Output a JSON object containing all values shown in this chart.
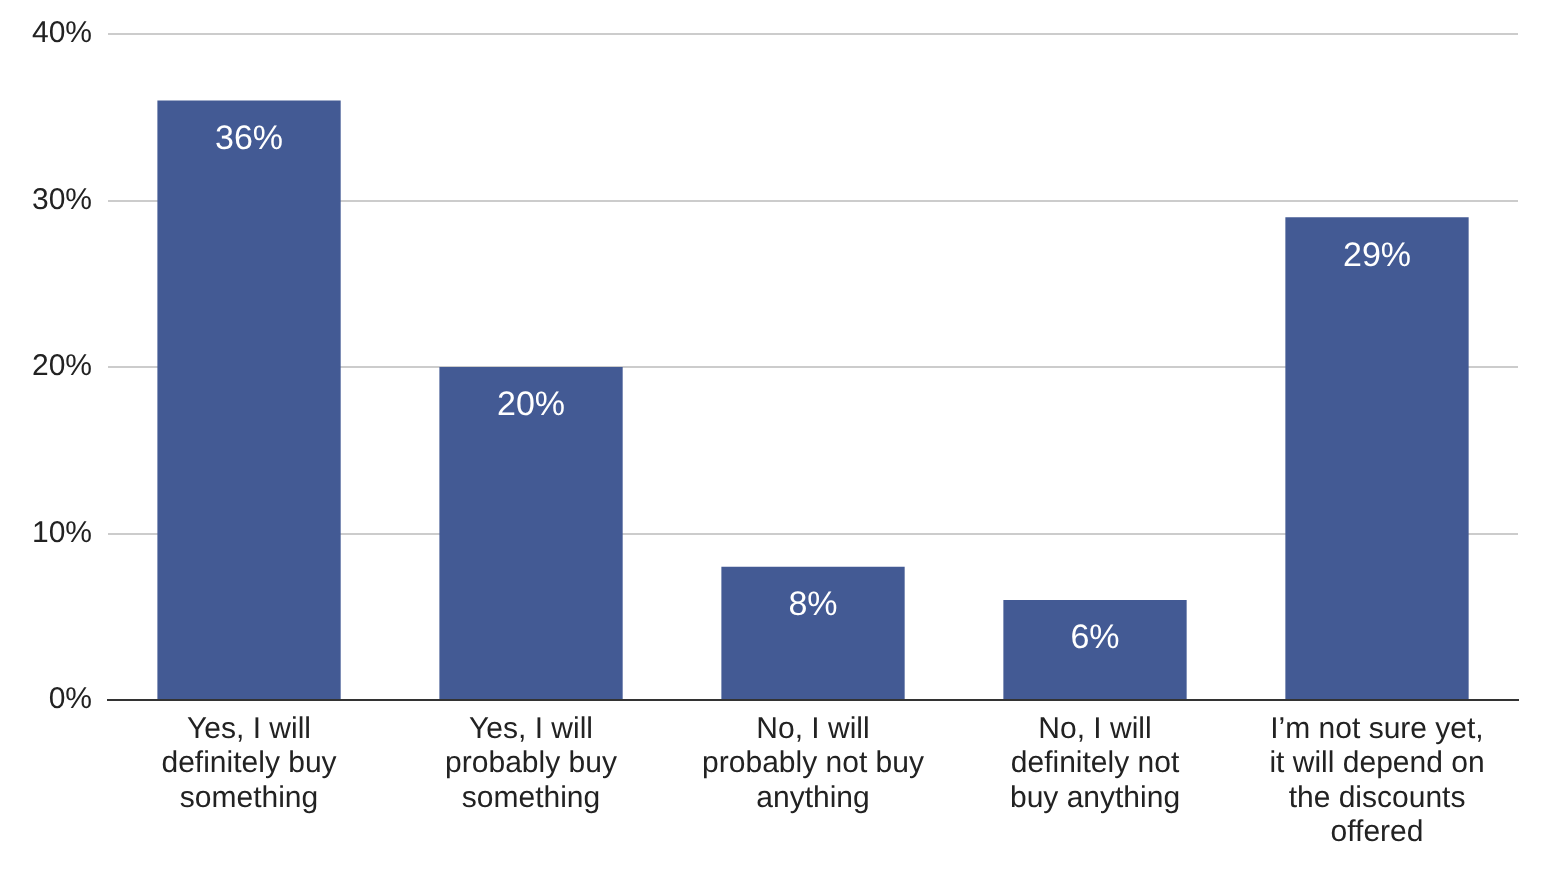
{
  "chart_data": {
    "type": "bar",
    "categories": [
      "Yes, I will definitely buy something",
      "Yes, I will probably buy something",
      "No, I will probably not buy anything",
      "No, I will definitely not buy anything",
      "I’m not sure yet, it will depend on the discounts offered"
    ],
    "values": [
      36,
      20,
      8,
      6,
      29
    ],
    "value_labels": [
      "36%",
      "20%",
      "8%",
      "6%",
      "29%"
    ],
    "color": "#435a94",
    "ylim": [
      0,
      40
    ],
    "yticks": [
      {
        "value": 0,
        "label": "0%"
      },
      {
        "value": 10,
        "label": "10%"
      },
      {
        "value": 20,
        "label": "20%"
      },
      {
        "value": 30,
        "label": "30%"
      },
      {
        "value": 40,
        "label": "40%"
      }
    ],
    "grid": "y"
  }
}
